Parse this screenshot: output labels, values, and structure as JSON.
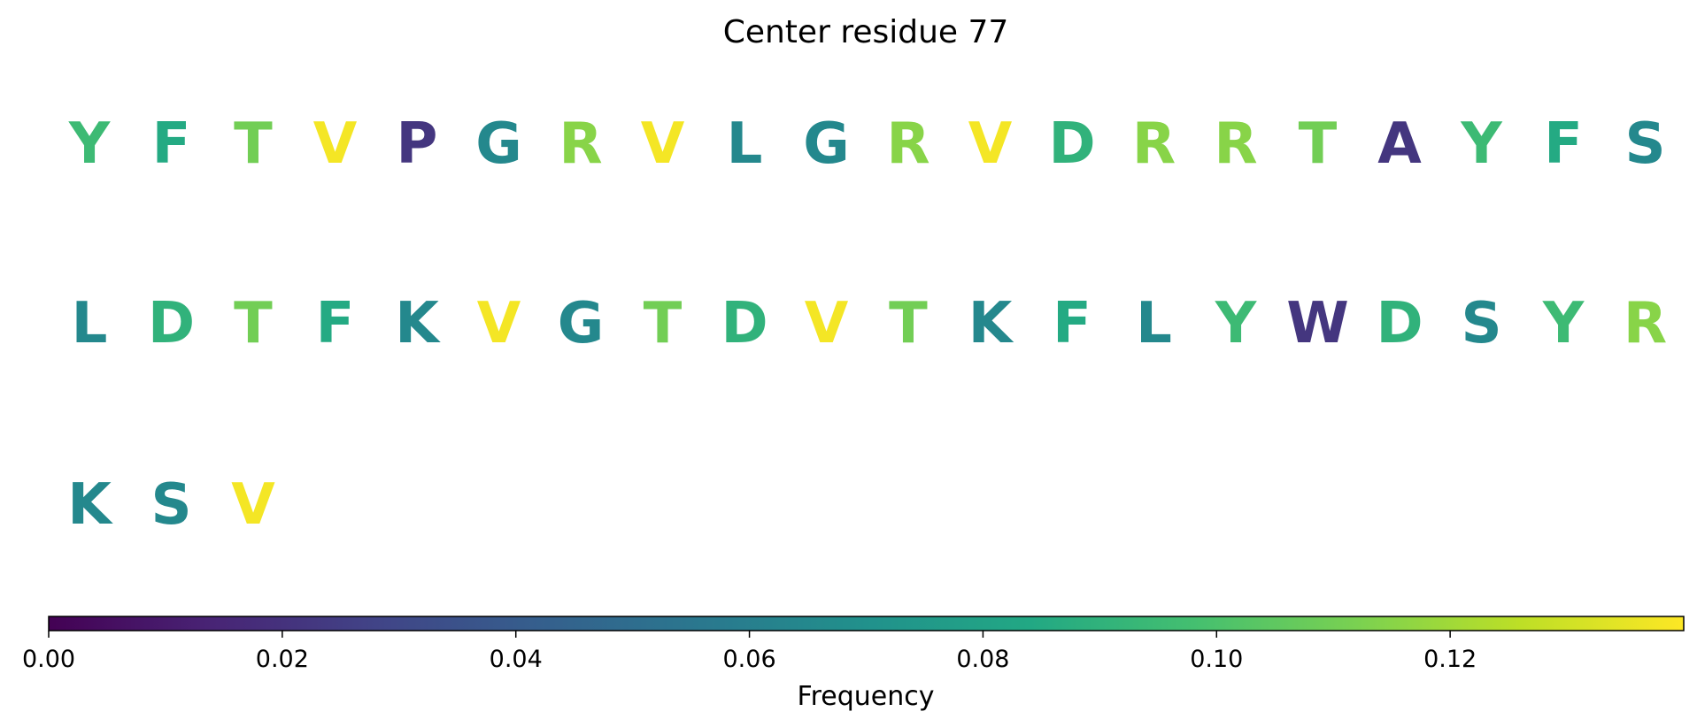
{
  "chart_data": {
    "type": "heatmap",
    "title": "Center residue 77",
    "rows": [
      {
        "residues": [
          "Y",
          "F",
          "T",
          "V",
          "P",
          "G",
          "R",
          "V",
          "L",
          "G",
          "R",
          "V",
          "D",
          "R",
          "R",
          "T",
          "A",
          "Y",
          "F",
          "S"
        ],
        "values": [
          0.095,
          0.085,
          0.11,
          0.138,
          0.022,
          0.065,
          0.115,
          0.138,
          0.065,
          0.065,
          0.115,
          0.138,
          0.09,
          0.115,
          0.115,
          0.11,
          0.022,
          0.095,
          0.085,
          0.065
        ]
      },
      {
        "residues": [
          "L",
          "D",
          "T",
          "F",
          "K",
          "V",
          "G",
          "T",
          "D",
          "V",
          "T",
          "K",
          "F",
          "L",
          "Y",
          "W",
          "D",
          "S",
          "Y",
          "R"
        ],
        "values": [
          0.065,
          0.09,
          0.11,
          0.085,
          0.065,
          0.138,
          0.065,
          0.11,
          0.09,
          0.138,
          0.11,
          0.065,
          0.085,
          0.065,
          0.095,
          0.022,
          0.09,
          0.065,
          0.095,
          0.115
        ]
      },
      {
        "residues": [
          "K",
          "S",
          "V"
        ],
        "values": [
          0.065,
          0.065,
          0.138
        ]
      }
    ],
    "colorbar": {
      "colormap": "viridis",
      "range": [
        0.0,
        0.14
      ],
      "ticks": [
        0.0,
        0.02,
        0.04,
        0.06,
        0.08,
        0.1,
        0.12
      ],
      "tick_labels": [
        "0.00",
        "0.02",
        "0.04",
        "0.06",
        "0.08",
        "0.10",
        "0.12"
      ],
      "label": "Frequency",
      "orientation": "horizontal"
    }
  }
}
